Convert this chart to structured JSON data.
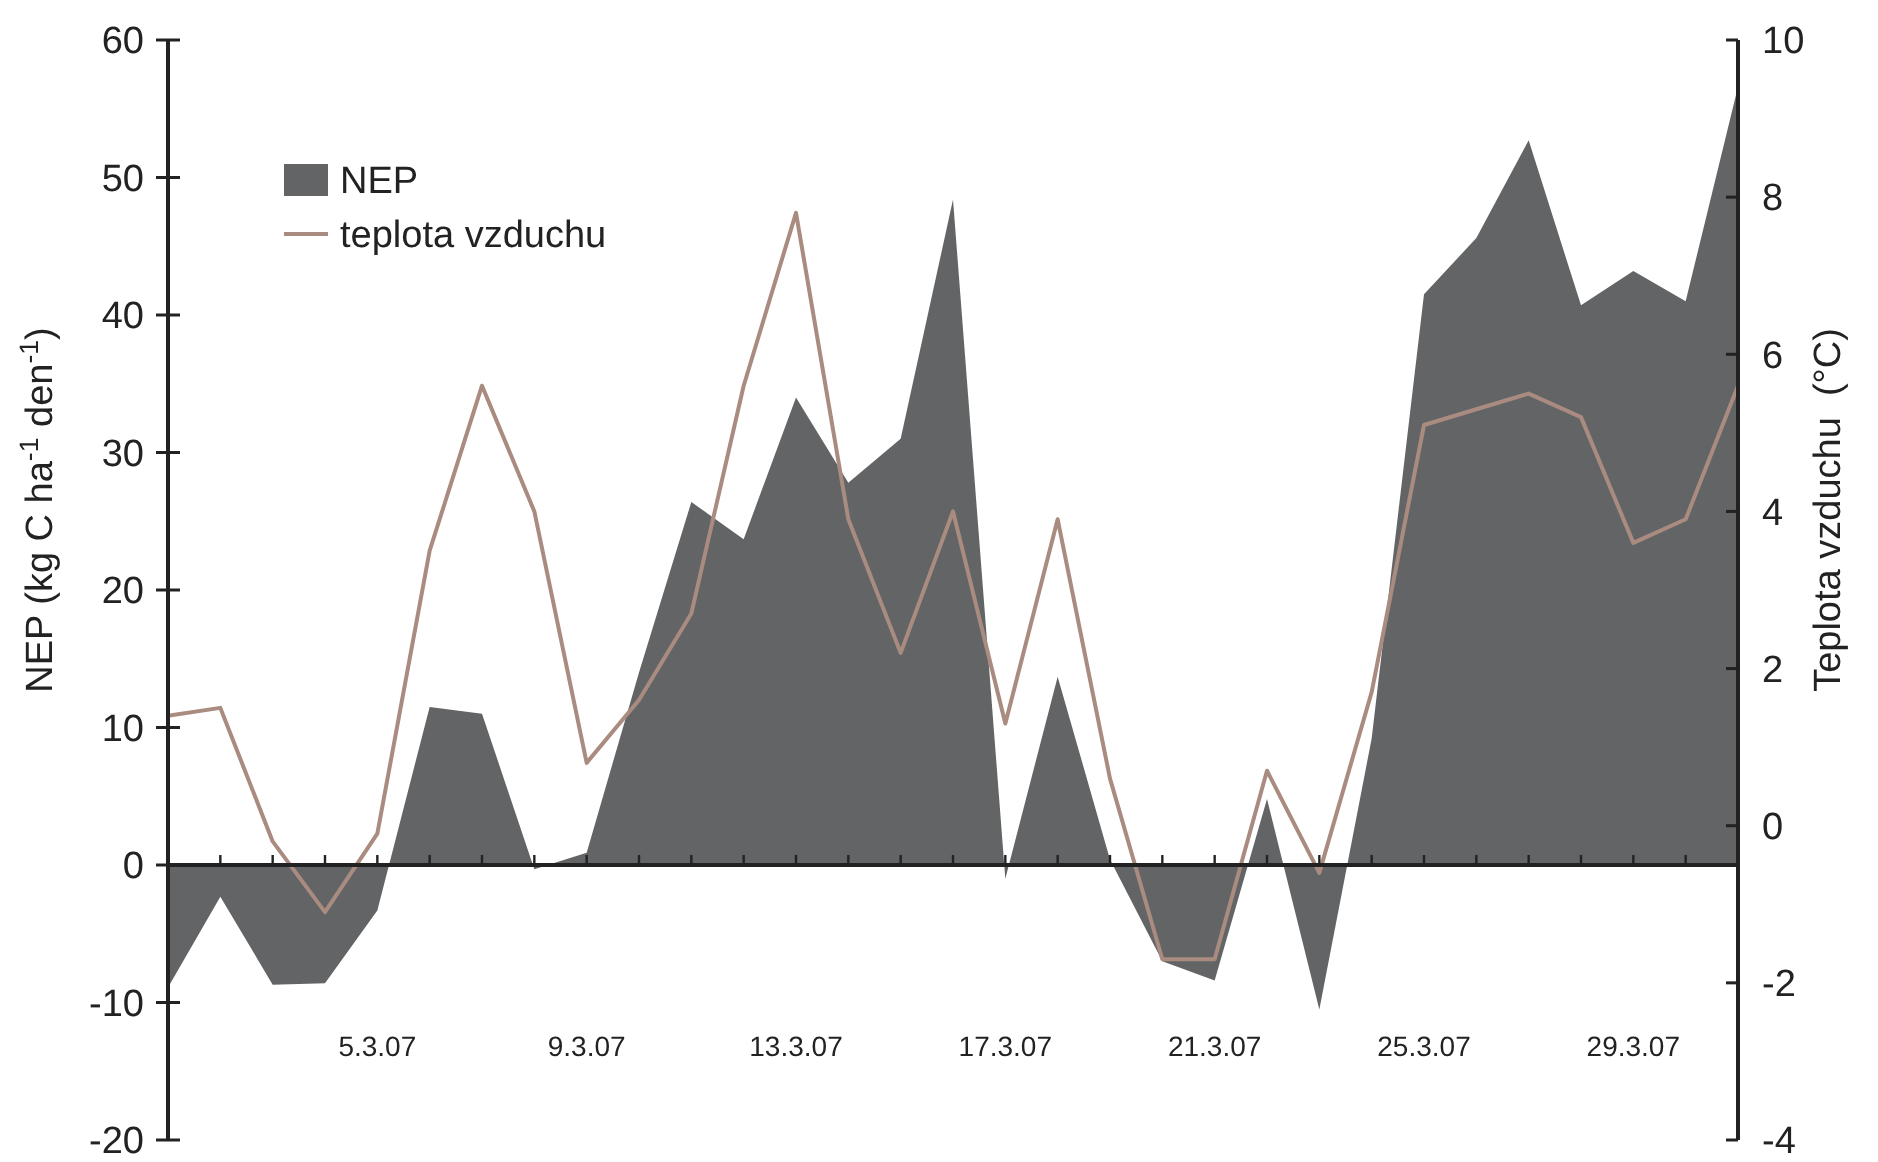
{
  "chart_data": {
    "type": "area",
    "xlabel": null,
    "ylabel": "NEP (kg C ha$^{-1}$ den$^{-1}$)",
    "y2label": "Teplota vzduchu  (°C)",
    "categories": [
      null,
      null,
      null,
      null,
      "5.3.07",
      null,
      null,
      null,
      "9.3.07",
      null,
      null,
      null,
      "13.3.07",
      null,
      null,
      null,
      "17.3.07",
      null,
      null,
      null,
      "21.3.07",
      null,
      null,
      null,
      "25.3.07",
      null,
      null,
      null,
      "29.3.07",
      null,
      null
    ],
    "series": [
      {
        "name": "NEP",
        "color": "#636466",
        "values": [
          -8.9,
          -2.3,
          -8.7,
          -8.6,
          -3.3,
          11.5,
          11.0,
          -0.3,
          0.9,
          14.0,
          26.4,
          23.7,
          34.0,
          27.8,
          31.0,
          48.4,
          -1.0,
          13.7,
          0.4,
          -7.0,
          -8.4,
          4.8,
          -10.5,
          9.2,
          41.5,
          45.6,
          52.7,
          40.7,
          43.2,
          41.0,
          56.6
        ]
      },
      {
        "name": "teplota vzduchu",
        "type": "line",
        "axis": "y2",
        "color": "#a98b80",
        "values": [
          1.4,
          1.5,
          -0.2,
          -1.1,
          -0.1,
          3.5,
          5.6,
          4.0,
          0.8,
          1.6,
          2.7,
          5.6,
          7.8,
          3.9,
          2.2,
          4.0,
          1.3,
          3.9,
          0.6,
          -1.7,
          -1.7,
          0.7,
          -0.6,
          1.7,
          5.1,
          5.3,
          5.5,
          5.2,
          3.6,
          3.9,
          5.6
        ]
      }
    ],
    "ylim": [
      -20,
      60
    ],
    "yticks": [
      -20,
      -10,
      0,
      10,
      20,
      30,
      40,
      50,
      60
    ],
    "y2lim": [
      -4,
      10
    ],
    "y2ticks": [
      -4,
      -2,
      0,
      2,
      4,
      6,
      8,
      10
    ],
    "legend": "top left"
  }
}
